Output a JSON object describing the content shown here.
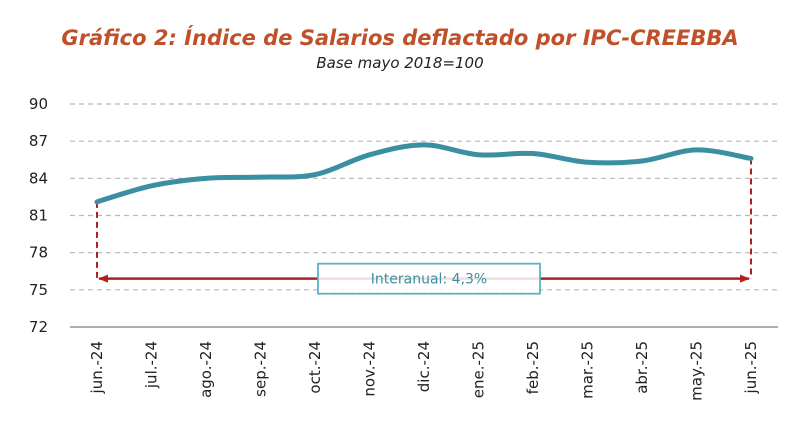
{
  "chart_data": {
    "type": "line",
    "title": "Gráfico 2: Índice de Salarios deflactado por IPC-CREEBBA",
    "subtitle": "Base mayo 2018=100",
    "xlabel": "",
    "ylabel": "",
    "categories": [
      "jun.-24",
      "jul.-24",
      "ago.-24",
      "sep.-24",
      "oct.-24",
      "nov.-24",
      "dic.-24",
      "ene.-25",
      "feb.-25",
      "mar.-25",
      "abr.-25",
      "may.-25",
      "jun.-25"
    ],
    "series": [
      {
        "values": [
          82.1,
          83.4,
          84.0,
          84.1,
          84.3,
          85.9,
          86.7,
          85.9,
          86.0,
          85.3,
          85.4,
          86.3,
          85.6
        ]
      }
    ],
    "ylim": [
      72,
      90
    ],
    "yticks": [
      72,
      75,
      78,
      81,
      84,
      87,
      90
    ],
    "grid": true,
    "line_color": "#3a8fa0",
    "annotation": {
      "label": "Interanual: 4,3%",
      "arrow_level": 75.9,
      "color": "#b02020",
      "box_border_color": "#5ab4c0"
    }
  }
}
